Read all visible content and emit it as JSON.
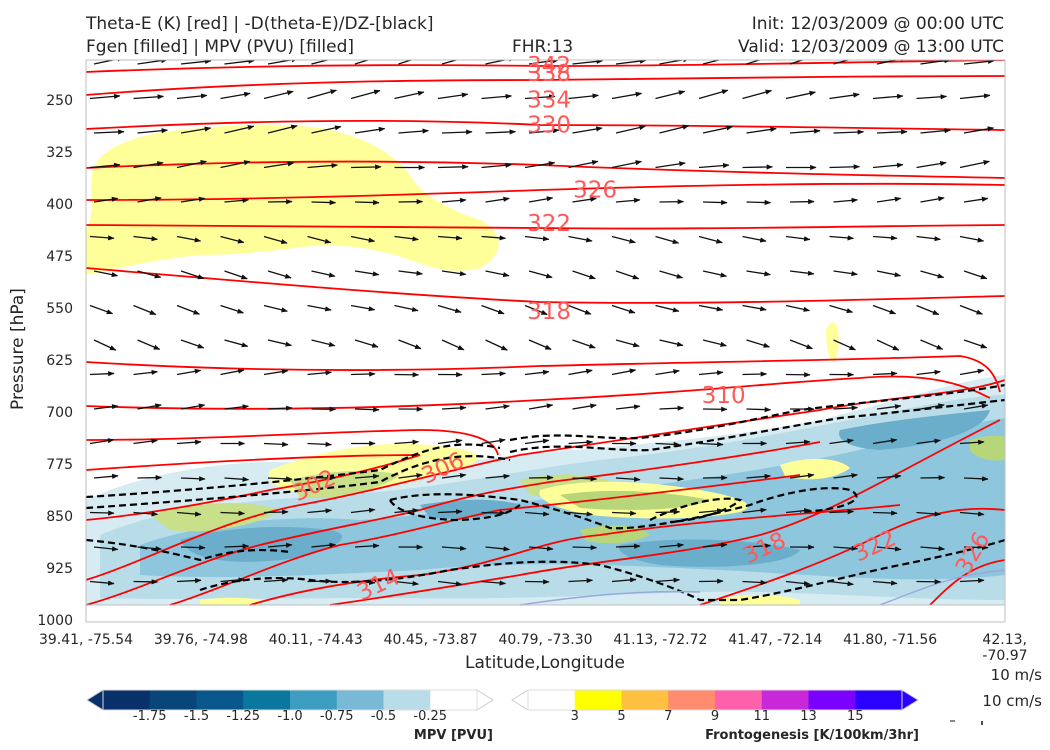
{
  "header": {
    "title_left_1": "Theta-E (K) [red] | -D(theta-E)/DZ-[black]",
    "title_left_2": "Fgen [filled] | MPV (PVU) [filled]",
    "title_center": "FHR:13",
    "title_right_1": "Init: 12/03/2009 @ 00:00 UTC",
    "title_right_2": "Valid: 12/03/2009 @ 13:00 UTC"
  },
  "chart_data": {
    "type": "cross-section",
    "xlabel": "Latitude,Longitude",
    "ylabel": "Pressure [hPa]",
    "x_ticks": [
      "39.41, -75.54",
      "39.76, -74.98",
      "40.11, -74.43",
      "40.45, -73.87",
      "40.79, -73.30",
      "41.13, -72.72",
      "41.47, -72.14",
      "41.80, -71.56",
      "42.13, -70.97"
    ],
    "y_ticks": [
      250,
      325,
      400,
      475,
      550,
      625,
      700,
      775,
      850,
      925,
      1000
    ],
    "ylim": [
      1000,
      190
    ],
    "y_scale": "linear (inverted)",
    "theta_e_contours": {
      "color": "#ff0000",
      "labels": [
        {
          "value": "342",
          "x_frac": 0.48,
          "p": 197
        },
        {
          "value": "338",
          "x_frac": 0.48,
          "p": 209
        },
        {
          "value": "334",
          "x_frac": 0.48,
          "p": 247
        },
        {
          "value": "330",
          "x_frac": 0.48,
          "p": 283
        },
        {
          "value": "326",
          "x_frac": 0.53,
          "p": 377
        },
        {
          "value": "322",
          "x_frac": 0.48,
          "p": 425
        },
        {
          "value": "318",
          "x_frac": 0.48,
          "p": 552
        },
        {
          "value": "310",
          "x_frac": 0.67,
          "p": 673
        },
        {
          "value": "306",
          "x_frac": 0.37,
          "p": 790
        },
        {
          "value": "302",
          "x_frac": 0.23,
          "p": 815
        },
        {
          "value": "314",
          "x_frac": 0.3,
          "p": 958
        },
        {
          "value": "318",
          "x_frac": 0.72,
          "p": 905
        },
        {
          "value": "322",
          "x_frac": 0.84,
          "p": 902
        },
        {
          "value": "326",
          "x_frac": 0.96,
          "p": 922
        }
      ]
    },
    "mpv_colorbar": {
      "label": "MPV [PVU]",
      "ticks": [
        "-1.75",
        "-1.5",
        "-1.25",
        "-1.0",
        "-0.75",
        "-0.5",
        "-0.25"
      ],
      "colors": [
        "#08306b",
        "#08457a",
        "#08578c",
        "#0a789e",
        "#3c9dc0",
        "#7ab9d6",
        "#b9dce9",
        "#ffffff"
      ]
    },
    "fgen_colorbar": {
      "label": "Frontogenesis [K/100km/3hr]",
      "ticks": [
        "3",
        "5",
        "7",
        "9",
        "11",
        "13",
        "15"
      ],
      "colors": [
        "#ffffff",
        "#ffff00",
        "#ffbf40",
        "#ff8c6e",
        "#ff60ac",
        "#c828d8",
        "#7a00ff",
        "#2a00ff"
      ]
    },
    "grid": false
  },
  "vector_key": {
    "horizontal": "10 m/s",
    "vertical": "10 cm/s"
  }
}
